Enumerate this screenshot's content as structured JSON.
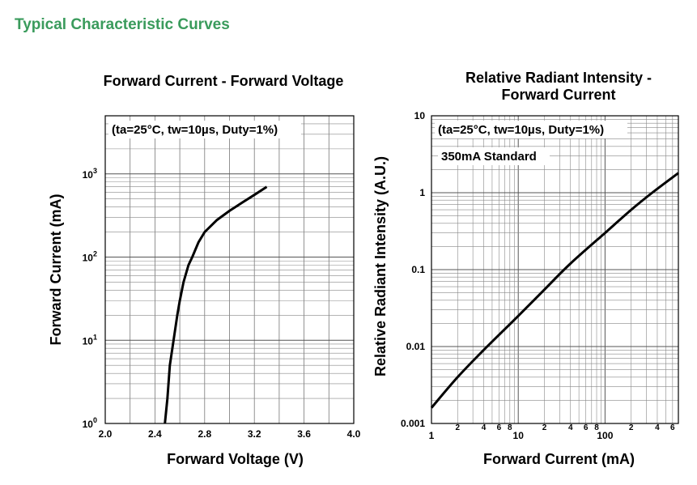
{
  "page": {
    "header_title": "Typical Characteristic Curves",
    "header_color": "#3a9b5c"
  },
  "chart_data": [
    {
      "type": "line",
      "title": "Forward Current - Forward Voltage",
      "xlabel": "Forward Voltage (V)",
      "ylabel": "Forward Current (mA)",
      "xscale": "linear",
      "yscale": "log",
      "xlim": [
        2.0,
        4.0
      ],
      "ylim": [
        1,
        5000
      ],
      "x_ticks": [
        "2.0",
        "2.4",
        "2.8",
        "3.2",
        "3.6",
        "4.0"
      ],
      "y_ticks": [
        {
          "base": "10",
          "exp": "0"
        },
        {
          "base": "10",
          "exp": "1"
        },
        {
          "base": "10",
          "exp": "2"
        },
        {
          "base": "10",
          "exp": "3"
        }
      ],
      "annotation": "(ta=25°C, tw=10µs, Duty=1%)",
      "grid": true,
      "series": [
        {
          "color": "#000000",
          "x": [
            2.48,
            2.5,
            2.52,
            2.55,
            2.58,
            2.6,
            2.63,
            2.67,
            2.7,
            2.75,
            2.8,
            2.9,
            3.0,
            3.1,
            3.2,
            3.3
          ],
          "y": [
            1,
            2,
            5,
            10,
            20,
            30,
            50,
            80,
            100,
            150,
            200,
            280,
            360,
            450,
            560,
            700
          ]
        }
      ]
    },
    {
      "type": "line",
      "title_lines": [
        "Relative Radiant Intensity -",
        "Forward Current"
      ],
      "xlabel": "Forward Current (mA)",
      "ylabel": "Relative Radiant Intensity (A.U.)",
      "xscale": "log",
      "yscale": "log",
      "xlim": [
        1,
        700
      ],
      "ylim": [
        0.001,
        10
      ],
      "x_ticks_major": [
        "1",
        "10",
        "100"
      ],
      "x_ticks_minor": [
        "2",
        "4",
        "6",
        "8",
        "2",
        "4",
        "6",
        "8",
        "2",
        "4",
        "6"
      ],
      "y_ticks": [
        "0.001",
        "0.01",
        "0.1",
        "1",
        "10"
      ],
      "annotation": "(ta=25°C, tw=10µs, Duty=1%)",
      "annotation2": "350mA Standard",
      "grid": true,
      "series": [
        {
          "color": "#000000",
          "x": [
            1,
            2,
            4,
            10,
            20,
            40,
            100,
            200,
            350,
            700
          ],
          "y": [
            0.0016,
            0.004,
            0.009,
            0.025,
            0.055,
            0.12,
            0.3,
            0.6,
            1.0,
            1.8
          ]
        }
      ]
    }
  ]
}
